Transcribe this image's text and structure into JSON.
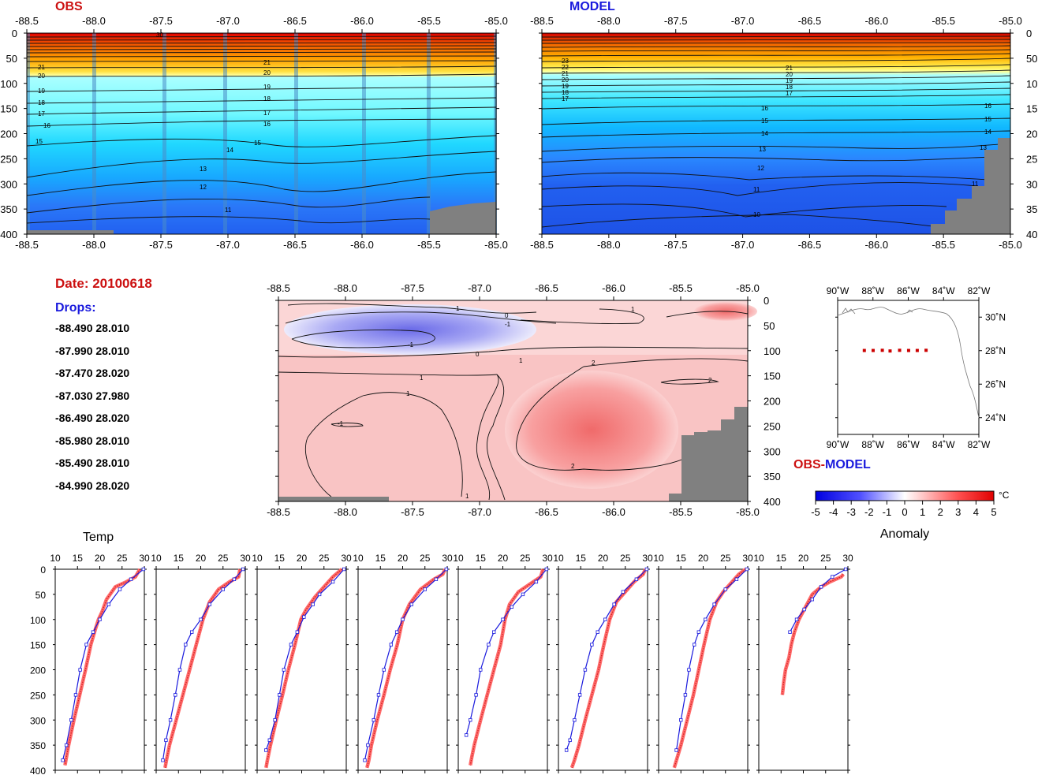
{
  "date_text": "Date: 20100618",
  "drops_label": "Drops:",
  "drops": [
    "-88.490 28.010",
    "-87.990 28.010",
    "-87.470 28.020",
    "-87.030 27.980",
    "-86.490 28.020",
    "-85.980 28.010",
    "-85.490 28.010",
    "-84.990 28.020"
  ],
  "colors": {
    "obs": "#cc1111",
    "model": "#1a1add",
    "land": "#808080"
  },
  "chart_data": [
    {
      "type": "heatmap",
      "title": "OBS",
      "x_ticks": [
        "-88.5",
        "-88.0",
        "-87.5",
        "-87.0",
        "-86.5",
        "-86.0",
        "-85.5",
        "-85.0"
      ],
      "y_ticks": [
        "0",
        "50",
        "100",
        "150",
        "200",
        "250",
        "300",
        "350",
        "400"
      ],
      "xlim": [
        -88.5,
        -85.0
      ],
      "ylim": [
        0,
        400
      ],
      "y_inverted": true,
      "contour_labels": [
        "30",
        "22",
        "21",
        "20",
        "19",
        "18",
        "17",
        "16",
        "15",
        "14",
        "13",
        "12",
        "11"
      ]
    },
    {
      "type": "heatmap",
      "title": "MODEL",
      "x_ticks": [
        "-88.5",
        "-88.0",
        "-87.5",
        "-87.0",
        "-86.5",
        "-86.0",
        "-85.5",
        "-85.0"
      ],
      "y_ticks": [
        "0",
        "50",
        "100",
        "150",
        "200",
        "250",
        "300",
        "350",
        "400"
      ],
      "xlim": [
        -88.5,
        -85.0
      ],
      "ylim": [
        0,
        400
      ],
      "y_inverted": true,
      "contour_labels": [
        "22",
        "21",
        "20",
        "19",
        "18",
        "17",
        "16",
        "15",
        "14",
        "13",
        "12",
        "11",
        "10"
      ]
    },
    {
      "type": "heatmap",
      "title": "OBS-MODEL",
      "title_parts": [
        "OBS",
        "-",
        "MODEL"
      ],
      "x_ticks": [
        "-88.5",
        "-88.0",
        "-87.5",
        "-87.0",
        "-86.5",
        "-86.0",
        "-85.5",
        "-85.0"
      ],
      "y_ticks": [
        "0",
        "50",
        "100",
        "150",
        "200",
        "250",
        "300",
        "350",
        "400"
      ],
      "xlim": [
        -88.5,
        -85.0
      ],
      "ylim": [
        0,
        400
      ],
      "contour_labels": [
        "1",
        "0",
        "-1",
        "-1",
        "0",
        "1",
        "2",
        "2",
        "1",
        "-1",
        "1",
        "2",
        "1"
      ],
      "colorbar": {
        "ticks": [
          "-5",
          "-4",
          "-3",
          "-2",
          "-1",
          "0",
          "1",
          "2",
          "3",
          "4",
          "5"
        ],
        "range": [
          -5,
          5
        ],
        "unit": "°C",
        "label": "Anomaly"
      }
    },
    {
      "type": "scatter",
      "subtype": "map",
      "x_ticks": [
        "90˚W",
        "88˚W",
        "86˚W",
        "84˚W",
        "82˚W"
      ],
      "y_ticks": [
        "30˚N",
        "28˚N",
        "26˚N",
        "24˚N"
      ],
      "xlim": [
        -90,
        -82
      ],
      "ylim": [
        23,
        31
      ],
      "points_lon": [
        -88.49,
        -87.99,
        -87.47,
        -87.03,
        -86.49,
        -85.98,
        -85.49,
        -84.99
      ],
      "points_lat": [
        28.01,
        28.01,
        28.02,
        27.98,
        28.02,
        28.01,
        28.01,
        28.02
      ]
    },
    {
      "type": "line",
      "title": "Temp",
      "x_ticks": [
        "10",
        "15",
        "20",
        "25",
        "30"
      ],
      "y_ticks": [
        "0",
        "50",
        "100",
        "150",
        "200",
        "250",
        "300",
        "350",
        "400"
      ],
      "xlim": [
        10,
        30
      ],
      "ylim": [
        0,
        400
      ],
      "y_inverted": true,
      "profiles": [
        {
          "obs": [
            [
              29.0,
              0
            ],
            [
              28.0,
              15
            ],
            [
              26.0,
              25
            ],
            [
              23.5,
              35
            ],
            [
              21.5,
              60
            ],
            [
              20.5,
              85
            ],
            [
              19.7,
              100
            ],
            [
              19.0,
              120
            ],
            [
              18.0,
              150
            ],
            [
              16.8,
              200
            ],
            [
              15.5,
              250
            ],
            [
              14.2,
              300
            ],
            [
              13.0,
              350
            ],
            [
              12.5,
              375
            ],
            [
              12.2,
              390
            ]
          ],
          "model": [
            [
              29.8,
              0
            ],
            [
              27.0,
              20
            ],
            [
              24.5,
              40
            ],
            [
              22.0,
              70
            ],
            [
              20.0,
              100
            ],
            [
              18.5,
              125
            ],
            [
              17.0,
              150
            ],
            [
              15.6,
              200
            ],
            [
              14.6,
              250
            ],
            [
              13.6,
              300
            ],
            [
              12.5,
              350
            ],
            [
              11.7,
              380
            ]
          ]
        },
        {
          "obs": [
            [
              28.8,
              0
            ],
            [
              28.5,
              15
            ],
            [
              26.5,
              25
            ],
            [
              24.0,
              40
            ],
            [
              22.0,
              65
            ],
            [
              20.5,
              100
            ],
            [
              19.0,
              150
            ],
            [
              17.5,
              200
            ],
            [
              16.0,
              250
            ],
            [
              14.5,
              300
            ],
            [
              13.0,
              350
            ],
            [
              12.3,
              380
            ],
            [
              12.0,
              395
            ]
          ],
          "model": [
            [
              29.5,
              0
            ],
            [
              27.5,
              20
            ],
            [
              25.0,
              40
            ],
            [
              22.0,
              70
            ],
            [
              20.0,
              100
            ],
            [
              18.0,
              125
            ],
            [
              16.6,
              150
            ],
            [
              15.3,
              200
            ],
            [
              14.3,
              250
            ],
            [
              13.2,
              300
            ],
            [
              12.2,
              340
            ],
            [
              11.5,
              380
            ]
          ]
        },
        {
          "obs": [
            [
              29.0,
              0
            ],
            [
              27.0,
              15
            ],
            [
              25.0,
              35
            ],
            [
              23.0,
              55
            ],
            [
              21.0,
              80
            ],
            [
              19.8,
              100
            ],
            [
              18.5,
              150
            ],
            [
              17.0,
              200
            ],
            [
              15.7,
              250
            ],
            [
              14.3,
              300
            ],
            [
              13.0,
              350
            ],
            [
              12.3,
              380
            ],
            [
              12.0,
              395
            ]
          ],
          "model": [
            [
              29.5,
              0
            ],
            [
              27.0,
              25
            ],
            [
              24.0,
              50
            ],
            [
              22.5,
              70
            ],
            [
              20.5,
              95
            ],
            [
              19.0,
              125
            ],
            [
              17.6,
              150
            ],
            [
              16.0,
              200
            ],
            [
              15.0,
              250
            ],
            [
              14.0,
              300
            ],
            [
              12.8,
              340
            ],
            [
              12.0,
              360
            ]
          ]
        },
        {
          "obs": [
            [
              29.5,
              0
            ],
            [
              29.0,
              10
            ],
            [
              27.0,
              20
            ],
            [
              24.0,
              40
            ],
            [
              21.5,
              70
            ],
            [
              20.0,
              100
            ],
            [
              18.8,
              150
            ],
            [
              17.2,
              200
            ],
            [
              15.8,
              250
            ],
            [
              14.3,
              300
            ],
            [
              13.0,
              350
            ],
            [
              12.4,
              380
            ],
            [
              12.0,
              395
            ]
          ],
          "model": [
            [
              29.8,
              0
            ],
            [
              27.5,
              20
            ],
            [
              25.0,
              40
            ],
            [
              22.0,
              70
            ],
            [
              20.0,
              100
            ],
            [
              18.7,
              125
            ],
            [
              17.4,
              150
            ],
            [
              15.8,
              200
            ],
            [
              14.6,
              250
            ],
            [
              13.5,
              300
            ],
            [
              12.2,
              350
            ],
            [
              11.5,
              380
            ]
          ]
        },
        {
          "obs": [
            [
              29.0,
              0
            ],
            [
              28.5,
              15
            ],
            [
              26.0,
              30
            ],
            [
              23.5,
              45
            ],
            [
              21.5,
              70
            ],
            [
              20.5,
              100
            ],
            [
              19.5,
              150
            ],
            [
              18.0,
              200
            ],
            [
              16.5,
              250
            ],
            [
              15.0,
              300
            ],
            [
              13.6,
              350
            ],
            [
              13.0,
              375
            ],
            [
              12.7,
              390
            ]
          ],
          "model": [
            [
              29.8,
              0
            ],
            [
              27.5,
              25
            ],
            [
              24.5,
              50
            ],
            [
              22.0,
              75
            ],
            [
              20.0,
              100
            ],
            [
              18.0,
              125
            ],
            [
              16.8,
              150
            ],
            [
              15.0,
              200
            ],
            [
              14.0,
              250
            ],
            [
              12.7,
              300
            ],
            [
              11.8,
              330
            ]
          ]
        },
        {
          "obs": [
            [
              29.5,
              0
            ],
            [
              29.0,
              10
            ],
            [
              27.0,
              25
            ],
            [
              25.0,
              45
            ],
            [
              23.0,
              65
            ],
            [
              21.5,
              100
            ],
            [
              20.2,
              150
            ],
            [
              19.0,
              200
            ],
            [
              17.5,
              250
            ],
            [
              16.0,
              300
            ],
            [
              14.6,
              350
            ],
            [
              13.6,
              380
            ],
            [
              13.0,
              395
            ]
          ],
          "model": [
            [
              29.8,
              0
            ],
            [
              27.5,
              20
            ],
            [
              24.5,
              45
            ],
            [
              22.5,
              70
            ],
            [
              20.5,
              100
            ],
            [
              18.8,
              125
            ],
            [
              17.5,
              150
            ],
            [
              16.0,
              200
            ],
            [
              14.8,
              250
            ],
            [
              13.6,
              300
            ],
            [
              12.6,
              340
            ],
            [
              11.8,
              360
            ]
          ]
        },
        {
          "obs": [
            [
              29.5,
              0
            ],
            [
              28.0,
              10
            ],
            [
              26.0,
              30
            ],
            [
              24.5,
              45
            ],
            [
              23.0,
              65
            ],
            [
              21.5,
              100
            ],
            [
              20.2,
              150
            ],
            [
              19.0,
              200
            ],
            [
              17.8,
              250
            ],
            [
              16.4,
              300
            ],
            [
              15.0,
              350
            ],
            [
              14.0,
              380
            ],
            [
              13.5,
              395
            ]
          ],
          "model": [
            [
              29.8,
              0
            ],
            [
              27.5,
              20
            ],
            [
              25.0,
              40
            ],
            [
              22.5,
              70
            ],
            [
              20.5,
              100
            ],
            [
              19.0,
              125
            ],
            [
              18.0,
              150
            ],
            [
              16.8,
              200
            ],
            [
              16.0,
              250
            ],
            [
              15.0,
              300
            ],
            [
              14.0,
              360
            ]
          ]
        },
        {
          "obs": [
            [
              29.0,
              10
            ],
            [
              28.5,
              15
            ],
            [
              26.0,
              25
            ],
            [
              24.0,
              35
            ],
            [
              22.0,
              50
            ],
            [
              20.5,
              75
            ],
            [
              19.0,
              100
            ],
            [
              18.0,
              125
            ],
            [
              17.3,
              150
            ],
            [
              16.8,
              175
            ],
            [
              16.0,
              200
            ],
            [
              15.6,
              225
            ],
            [
              15.3,
              250
            ]
          ],
          "model": [
            [
              29.5,
              0
            ],
            [
              26.5,
              15
            ],
            [
              24.0,
              35
            ],
            [
              22.0,
              60
            ],
            [
              20.2,
              80
            ],
            [
              18.5,
              100
            ],
            [
              17.0,
              125
            ]
          ]
        }
      ]
    }
  ]
}
